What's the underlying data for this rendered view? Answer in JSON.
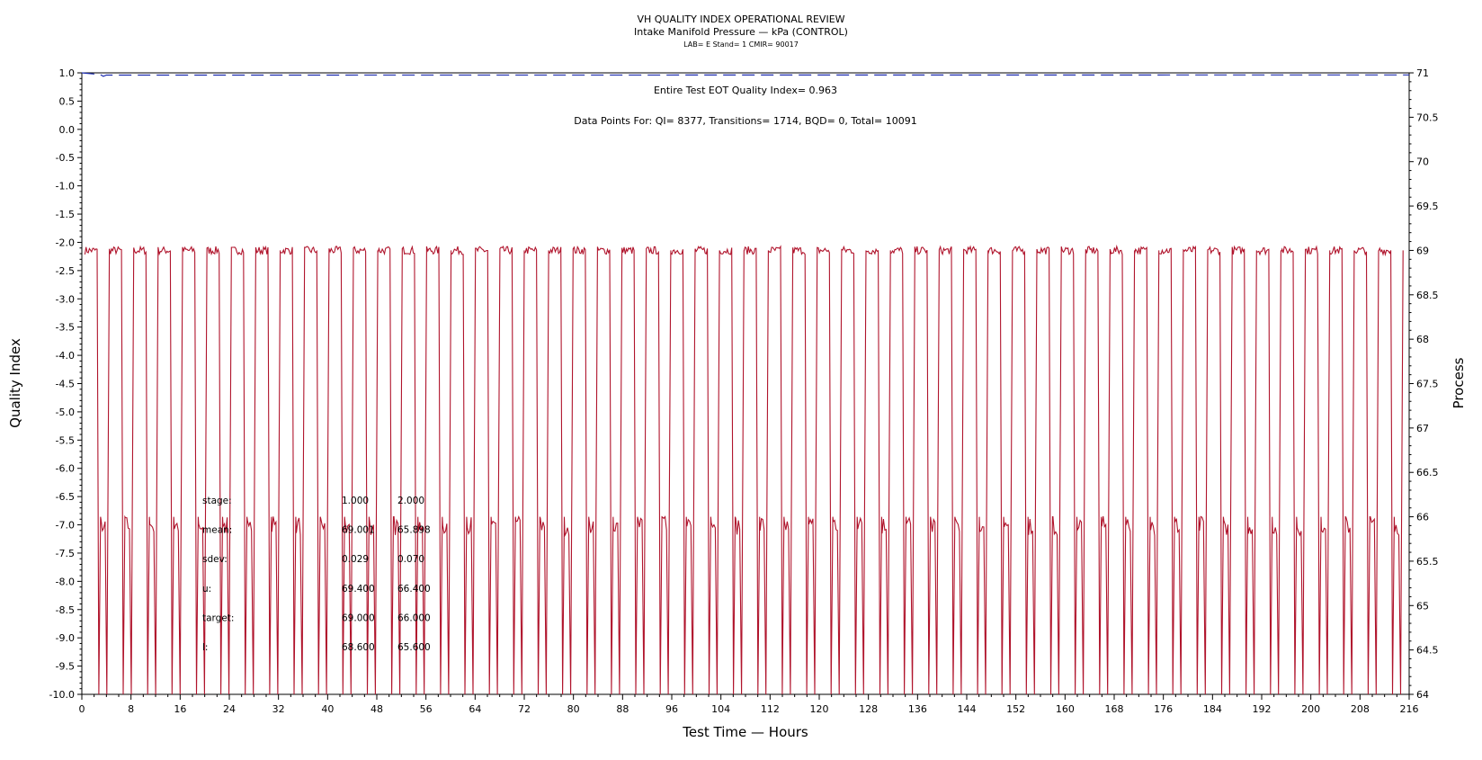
{
  "chart_data": {
    "type": "line",
    "title": "VH QUALITY INDEX OPERATIONAL REVIEW",
    "subtitle": "Intake Manifold Pressure — kPa (CONTROL)",
    "subtitle2": "LAB= E Stand= 1 CMIR= 90017",
    "xlabel": "Test Time — Hours",
    "ylabel": "Quality Index",
    "y2label": "Process",
    "xlim": [
      0,
      216
    ],
    "ylim": [
      -10.0,
      1.0
    ],
    "y2lim": [
      64,
      71
    ],
    "x_ticks": [
      "0",
      "8",
      "16",
      "24",
      "32",
      "40",
      "48",
      "56",
      "64",
      "72",
      "80",
      "88",
      "96",
      "104",
      "112",
      "120",
      "128",
      "136",
      "144",
      "152",
      "160",
      "168",
      "176",
      "184",
      "192",
      "200",
      "208",
      "216"
    ],
    "y_ticks": [
      "1.0",
      "0.5",
      "0.0",
      "-0.5",
      "-1.0",
      "-1.5",
      "-2.0",
      "-2.5",
      "-3.0",
      "-3.5",
      "-4.0",
      "-4.5",
      "-5.0",
      "-5.5",
      "-6.0",
      "-6.5",
      "-7.0",
      "-7.5",
      "-8.0",
      "-8.5",
      "-9.0",
      "-9.5",
      "-10.0"
    ],
    "y2_ticks": [
      "71",
      "70.5",
      "70",
      "69.5",
      "69",
      "68.5",
      "68",
      "67.5",
      "67",
      "66.5",
      "66",
      "65.5",
      "65",
      "64.5",
      "64"
    ],
    "annotations": {
      "eot": "Entire Test EOT Quality Index=   0.963",
      "points": "Data Points For: QI=  8377, Transitions=  1714, BQD=     0, Total= 10091"
    },
    "stats_table": [
      {
        "label": "stage:",
        "s1": "1.000",
        "s2": "2.000"
      },
      {
        "label": "mean:",
        "s1": "69.001",
        "s2": "65.898"
      },
      {
        "label": "sdev:",
        "s1": "0.029",
        "s2": "0.070"
      },
      {
        "label": "u:",
        "s1": "69.400",
        "s2": "66.400"
      },
      {
        "label": "target:",
        "s1": "69.000",
        "s2": "66.000"
      },
      {
        "label": "l:",
        "s1": "68.600",
        "s2": "65.600"
      }
    ],
    "series": [
      {
        "name": "Quality Index",
        "color": "#1f2fb0",
        "axis": "left",
        "style": "dashed",
        "x": [
          0,
          1,
          2,
          3,
          3.5,
          4,
          216
        ],
        "y": [
          1.0,
          0.99,
          0.98,
          0.97,
          0.94,
          0.96,
          0.963
        ]
      },
      {
        "name": "Process",
        "color": "#b0142c",
        "axis": "right",
        "style": "solid",
        "cycle_count": 54,
        "cycle_start": 0.5,
        "cycle_end": 215,
        "high_level": 69.0,
        "low_level": 65.9,
        "dip_level": 64.0
      }
    ]
  }
}
